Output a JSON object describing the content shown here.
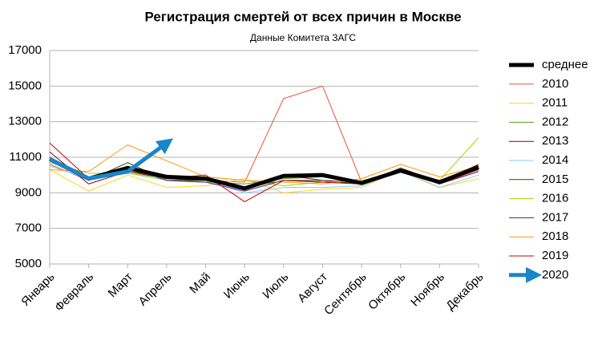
{
  "chart_data": {
    "type": "line",
    "title": "Регистрация смертей от всех причин в Москве",
    "subtitle": "Данные Комитета ЗАГС",
    "categories": [
      "Январь",
      "Февраль",
      "Март",
      "Апрель",
      "Май",
      "Июнь",
      "Июль",
      "Август",
      "Сентябрь",
      "Октябрь",
      "Ноябрь",
      "Декабрь"
    ],
    "ylim": [
      5000,
      17000
    ],
    "yticks": [
      5000,
      7000,
      9000,
      11000,
      13000,
      15000,
      17000
    ],
    "grid": true,
    "legend": "right",
    "series": [
      {
        "name": "среднее",
        "color": "#000000",
        "width": 5,
        "values": [
          10900,
          9800,
          10400,
          9900,
          9800,
          9250,
          9950,
          10000,
          9550,
          10250,
          9600,
          10450
        ]
      },
      {
        "name": "2010",
        "color": "#e8533a",
        "width": 1,
        "values": [
          10600,
          9700,
          10200,
          9800,
          9700,
          9600,
          14300,
          15000,
          9600,
          10200,
          9500,
          10300
        ]
      },
      {
        "name": "2011",
        "color": "#ffd320",
        "width": 1,
        "values": [
          10300,
          9100,
          10000,
          9300,
          9400,
          9800,
          9000,
          9200,
          9300,
          10300,
          9300,
          9800
        ]
      },
      {
        "name": "2012",
        "color": "#579d1c",
        "width": 1,
        "values": [
          10800,
          9700,
          10300,
          9700,
          9600,
          9500,
          9800,
          9900,
          9500,
          10300,
          9600,
          10400
        ]
      },
      {
        "name": "2013",
        "color": "#7e0021",
        "width": 1,
        "values": [
          11300,
          9500,
          10200,
          9800,
          9700,
          9300,
          10000,
          9700,
          9600,
          10200,
          9500,
          10200
        ]
      },
      {
        "name": "2014",
        "color": "#83caff",
        "width": 1,
        "values": [
          10500,
          9800,
          10100,
          9700,
          9700,
          9000,
          9300,
          9300,
          9400,
          10200,
          9300,
          10000
        ]
      },
      {
        "name": "2015",
        "color": "#314004",
        "width": 1,
        "values": [
          11000,
          9700,
          10700,
          9700,
          9700,
          9300,
          9700,
          9700,
          9500,
          10400,
          9600,
          10500
        ]
      },
      {
        "name": "2016",
        "color": "#aecf00",
        "width": 1,
        "values": [
          10700,
          10100,
          10100,
          9800,
          9900,
          9700,
          9400,
          9600,
          9700,
          10200,
          9700,
          12100
        ]
      },
      {
        "name": "2017",
        "color": "#4b1f6f",
        "width": 1,
        "values": [
          10800,
          9700,
          10500,
          9700,
          9600,
          9100,
          9700,
          9600,
          9500,
          10200,
          9600,
          10300
        ]
      },
      {
        "name": "2018",
        "color": "#ff950e",
        "width": 1,
        "values": [
          10300,
          10200,
          11700,
          10800,
          9900,
          9700,
          9600,
          9500,
          9800,
          10600,
          9900,
          10500
        ]
      },
      {
        "name": "2019",
        "color": "#c5000b",
        "width": 1,
        "values": [
          11800,
          9800,
          10400,
          9800,
          10000,
          8500,
          9700,
          9600,
          9500,
          10300,
          9600,
          10600
        ]
      },
      {
        "name": "2020",
        "color": "#1a86c8",
        "width": 5,
        "marker": "arrow",
        "values": [
          10900,
          9800,
          10200,
          11800,
          null,
          null,
          null,
          null,
          null,
          null,
          null,
          null
        ]
      }
    ]
  }
}
